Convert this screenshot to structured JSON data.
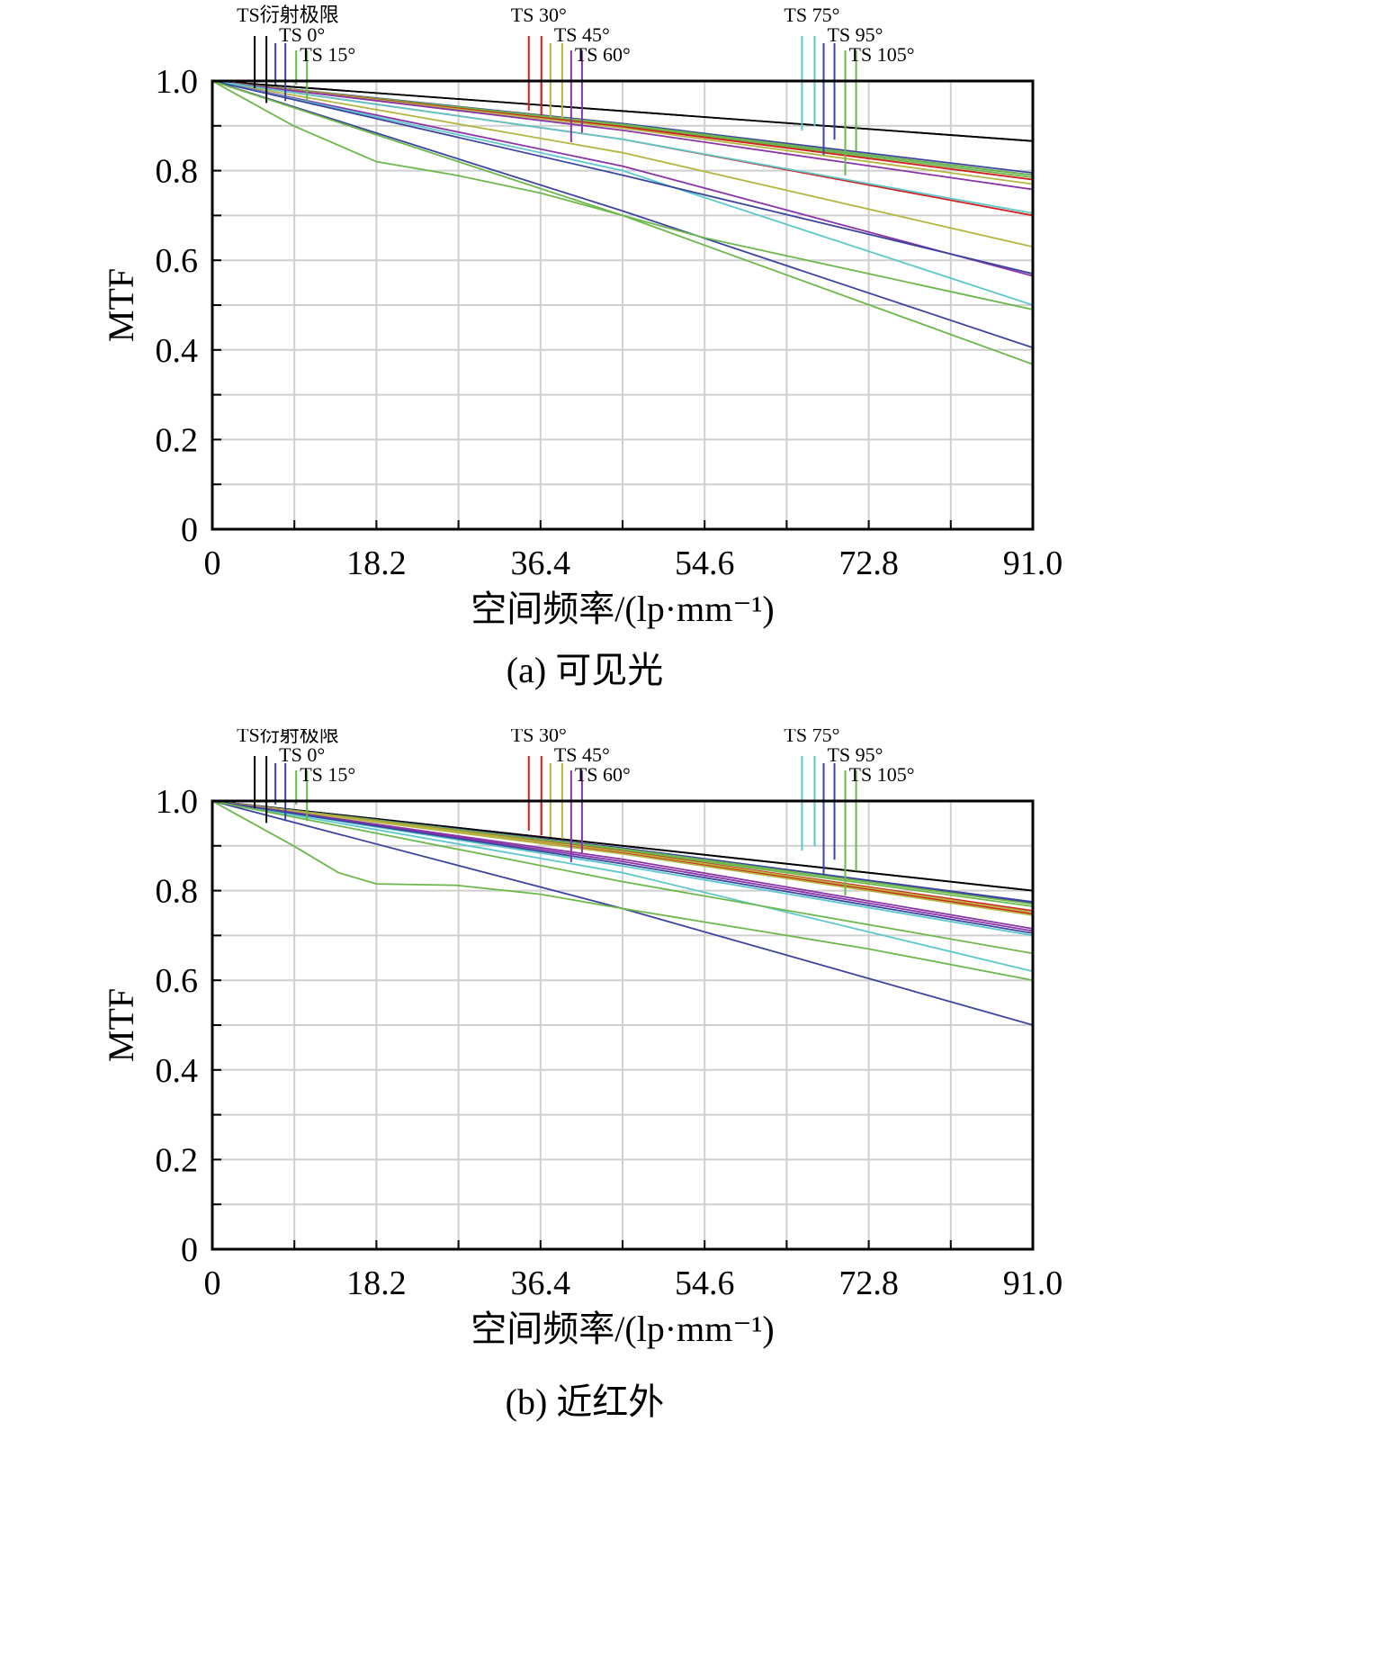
{
  "chart_data": [
    {
      "type": "line",
      "caption": "(a) 可见光",
      "xlabel": "空间频率/(lp·mm⁻¹)",
      "ylabel": "MTF",
      "xlim": [
        0,
        91.0
      ],
      "ylim": [
        0,
        1.0
      ],
      "x_ticks": [
        "0",
        "18.2",
        "36.4",
        "54.6",
        "72.8",
        "91.0"
      ],
      "y_ticks": [
        "0",
        "0.2",
        "0.4",
        "0.6",
        "0.8",
        "1.0"
      ],
      "legend": [
        {
          "label": "TS衍射极限",
          "color": "#000000",
          "x": [
            4.7,
            6.0
          ]
        },
        {
          "label": "TS 0°",
          "color": "#3d44a0",
          "x": [
            7.0,
            8.1
          ]
        },
        {
          "label": "TS 15°",
          "color": "#6cb84a",
          "x": [
            9.3,
            10.5
          ]
        },
        {
          "label": "TS 30°",
          "color": "#d22020",
          "x": [
            35.1,
            36.5
          ]
        },
        {
          "label": "TS 45°",
          "color": "#b5b540",
          "x": [
            37.5,
            38.8
          ]
        },
        {
          "label": "TS 60°",
          "color": "#8a34a8",
          "x": [
            39.8,
            41.0
          ]
        },
        {
          "label": "TS 75°",
          "color": "#5cc8cc",
          "x": [
            65.4,
            66.8
          ]
        },
        {
          "label": "TS 95°",
          "color": "#3d44a0",
          "x": [
            67.8,
            69.0
          ]
        },
        {
          "label": "TS 105°",
          "color": "#6cb84a",
          "x": [
            70.2,
            71.4
          ]
        }
      ],
      "series": [
        {
          "name": "TS衍射极限 T",
          "color": "#000000",
          "x": [
            0,
            91
          ],
          "y": [
            1.0,
            0.866
          ]
        },
        {
          "name": "TS衍射极限 S",
          "color": "#000000",
          "x": [
            0,
            91
          ],
          "y": [
            1.0,
            0.866
          ]
        },
        {
          "name": "TS 0° T",
          "color": "#3d44a0",
          "x": [
            0,
            45.5,
            91
          ],
          "y": [
            1.0,
            0.905,
            0.795
          ]
        },
        {
          "name": "TS 0° S",
          "color": "#3d44a0",
          "x": [
            0,
            45.5,
            91
          ],
          "y": [
            1.0,
            0.902,
            0.79
          ]
        },
        {
          "name": "TS 15° T",
          "color": "#6cb84a",
          "x": [
            0,
            45.5,
            91
          ],
          "y": [
            1.0,
            0.903,
            0.79
          ]
        },
        {
          "name": "TS 15° S",
          "color": "#6cb84a",
          "x": [
            0,
            45.5,
            91
          ],
          "y": [
            1.0,
            0.9,
            0.785
          ]
        },
        {
          "name": "TS 30° T",
          "color": "#d22020",
          "x": [
            0,
            45.5,
            91
          ],
          "y": [
            1.0,
            0.898,
            0.78
          ]
        },
        {
          "name": "TS 30° S",
          "color": "#d22020",
          "x": [
            0,
            45.5,
            91
          ],
          "y": [
            1.0,
            0.87,
            0.7
          ]
        },
        {
          "name": "TS 45° T",
          "color": "#b5b540",
          "x": [
            0,
            45.5,
            91
          ],
          "y": [
            1.0,
            0.895,
            0.77
          ]
        },
        {
          "name": "TS 45° S",
          "color": "#b5b540",
          "x": [
            0,
            45.5,
            91
          ],
          "y": [
            1.0,
            0.84,
            0.63
          ]
        },
        {
          "name": "TS 60° T",
          "color": "#8a34a8",
          "x": [
            0,
            45.5,
            91
          ],
          "y": [
            1.0,
            0.89,
            0.758
          ]
        },
        {
          "name": "TS 60° S",
          "color": "#8a34a8",
          "x": [
            0,
            45.5,
            91
          ],
          "y": [
            1.0,
            0.81,
            0.565
          ]
        },
        {
          "name": "TS 75° T",
          "color": "#5cc8cc",
          "x": [
            0,
            45.5,
            91
          ],
          "y": [
            1.0,
            0.87,
            0.705
          ]
        },
        {
          "name": "TS 75° S",
          "color": "#5cc8cc",
          "x": [
            0,
            45.5,
            91
          ],
          "y": [
            1.0,
            0.8,
            0.5
          ]
        },
        {
          "name": "TS 95° T",
          "color": "#3d44a0",
          "x": [
            0,
            45.5,
            91
          ],
          "y": [
            1.0,
            0.79,
            0.57
          ]
        },
        {
          "name": "TS 95° S",
          "color": "#3d44a0",
          "x": [
            0,
            45.5,
            91
          ],
          "y": [
            1.0,
            0.71,
            0.405
          ]
        },
        {
          "name": "TS 105° T",
          "color": "#6cb84a",
          "x": [
            0,
            9,
            18.2,
            27,
            36.4,
            45.5,
            54.6,
            63.7,
            72.8,
            81.9,
            91
          ],
          "y": [
            1.0,
            0.9,
            0.82,
            0.79,
            0.75,
            0.7,
            0.65,
            0.61,
            0.57,
            0.53,
            0.49
          ]
        },
        {
          "name": "TS 105° S",
          "color": "#6cb84a",
          "x": [
            0,
            45.5,
            91
          ],
          "y": [
            1.0,
            0.7,
            0.368
          ]
        }
      ]
    },
    {
      "type": "line",
      "caption": "(b) 近红外",
      "xlabel": "空间频率/(lp·mm⁻¹)",
      "ylabel": "MTF",
      "xlim": [
        0,
        91.0
      ],
      "ylim": [
        0,
        1.0
      ],
      "x_ticks": [
        "0",
        "18.2",
        "36.4",
        "54.6",
        "72.8",
        "91.0"
      ],
      "y_ticks": [
        "0",
        "0.2",
        "0.4",
        "0.6",
        "0.8",
        "1.0"
      ],
      "legend": [
        {
          "label": "TS衍射极限",
          "color": "#000000",
          "x": [
            4.7,
            6.0
          ]
        },
        {
          "label": "TS 0°",
          "color": "#3d44a0",
          "x": [
            7.0,
            8.1
          ]
        },
        {
          "label": "TS 15°",
          "color": "#6cb84a",
          "x": [
            9.3,
            10.5
          ]
        },
        {
          "label": "TS 30°",
          "color": "#d22020",
          "x": [
            35.1,
            36.5
          ]
        },
        {
          "label": "TS 45°",
          "color": "#b5b540",
          "x": [
            37.5,
            38.8
          ]
        },
        {
          "label": "TS 60°",
          "color": "#8a34a8",
          "x": [
            39.8,
            41.0
          ]
        },
        {
          "label": "TS 75°",
          "color": "#5cc8cc",
          "x": [
            65.4,
            66.8
          ]
        },
        {
          "label": "TS 95°",
          "color": "#3d44a0",
          "x": [
            67.8,
            69.0
          ]
        },
        {
          "label": "TS 105°",
          "color": "#6cb84a",
          "x": [
            70.2,
            71.4
          ]
        }
      ],
      "series": [
        {
          "name": "TS衍射极限 T",
          "color": "#000000",
          "x": [
            0,
            91
          ],
          "y": [
            1.0,
            0.8
          ]
        },
        {
          "name": "TS衍射极限 S",
          "color": "#000000",
          "x": [
            0,
            91
          ],
          "y": [
            1.0,
            0.8
          ]
        },
        {
          "name": "TS 0° T",
          "color": "#3d44a0",
          "x": [
            0,
            45.5,
            91
          ],
          "y": [
            1.0,
            0.895,
            0.775
          ]
        },
        {
          "name": "TS 0° S",
          "color": "#3d44a0",
          "x": [
            0,
            45.5,
            91
          ],
          "y": [
            1.0,
            0.893,
            0.772
          ]
        },
        {
          "name": "TS 15° T",
          "color": "#6cb84a",
          "x": [
            0,
            45.5,
            91
          ],
          "y": [
            1.0,
            0.893,
            0.77
          ]
        },
        {
          "name": "TS 15° S",
          "color": "#6cb84a",
          "x": [
            0,
            45.5,
            91
          ],
          "y": [
            1.0,
            0.89,
            0.765
          ]
        },
        {
          "name": "TS 30° T",
          "color": "#d22020",
          "x": [
            0,
            45.5,
            91
          ],
          "y": [
            1.0,
            0.888,
            0.755
          ]
        },
        {
          "name": "TS 30° S",
          "color": "#d22020",
          "x": [
            0,
            45.5,
            91
          ],
          "y": [
            1.0,
            0.885,
            0.748
          ]
        },
        {
          "name": "TS 45° T",
          "color": "#b5b540",
          "x": [
            0,
            45.5,
            91
          ],
          "y": [
            1.0,
            0.887,
            0.752
          ]
        },
        {
          "name": "TS 45° S",
          "color": "#b5b540",
          "x": [
            0,
            45.5,
            91
          ],
          "y": [
            1.0,
            0.882,
            0.745
          ]
        },
        {
          "name": "TS 60° T",
          "color": "#8a34a8",
          "x": [
            0,
            45.5,
            91
          ],
          "y": [
            1.0,
            0.87,
            0.715
          ]
        },
        {
          "name": "TS 60° S",
          "color": "#8a34a8",
          "x": [
            0,
            45.5,
            91
          ],
          "y": [
            1.0,
            0.865,
            0.71
          ]
        },
        {
          "name": "TS 75° T",
          "color": "#5cc8cc",
          "x": [
            0,
            45.5,
            91
          ],
          "y": [
            1.0,
            0.84,
            0.62
          ]
        },
        {
          "name": "TS 75° S",
          "color": "#5cc8cc",
          "x": [
            0,
            45.5,
            91
          ],
          "y": [
            1.0,
            0.855,
            0.7
          ]
        },
        {
          "name": "TS 95° T",
          "color": "#3d44a0",
          "x": [
            0,
            45.5,
            91
          ],
          "y": [
            1.0,
            0.76,
            0.5
          ]
        },
        {
          "name": "TS 95° S",
          "color": "#3d44a0",
          "x": [
            0,
            45.5,
            91
          ],
          "y": [
            1.0,
            0.86,
            0.705
          ]
        },
        {
          "name": "TS 105° T",
          "color": "#6cb84a",
          "x": [
            0,
            9,
            14,
            18.2,
            27,
            36.4,
            45.5,
            54.6,
            63.7,
            72.8,
            81.9,
            91
          ],
          "y": [
            1.0,
            0.9,
            0.84,
            0.815,
            0.812,
            0.792,
            0.76,
            0.73,
            0.7,
            0.67,
            0.635,
            0.6
          ]
        },
        {
          "name": "TS 105° S",
          "color": "#6cb84a",
          "x": [
            0,
            45.5,
            91
          ],
          "y": [
            1.0,
            0.82,
            0.66
          ]
        }
      ]
    }
  ]
}
